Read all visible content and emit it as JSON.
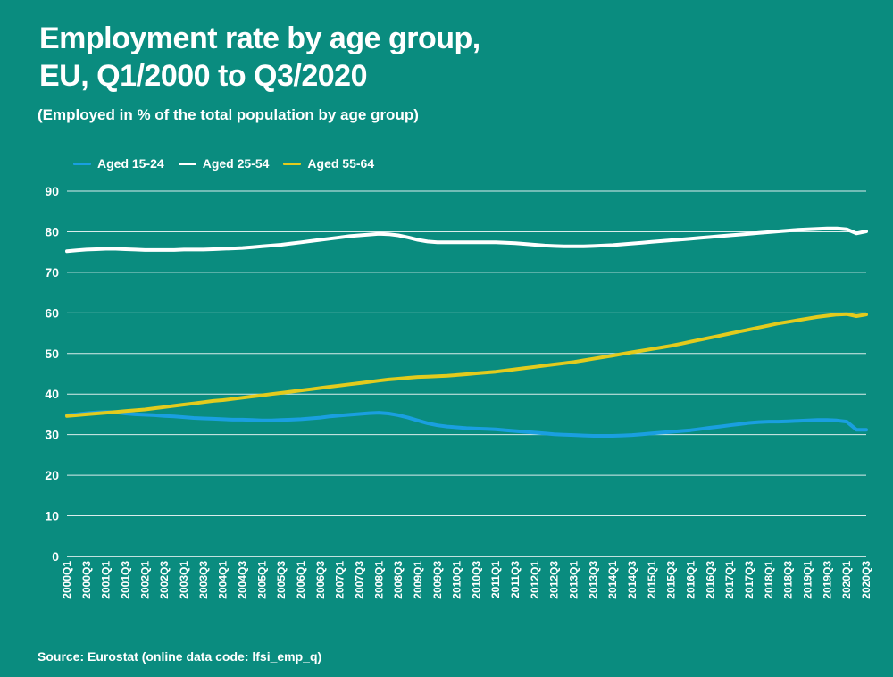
{
  "header": {
    "title_line1": "Employment rate by age group,",
    "title_line2": "EU, Q1/2000 to Q3/2020",
    "subtitle": "(Employed in % of the total population by age group)"
  },
  "footer": {
    "source": "Source: Eurostat (online data code: lfsi_emp_q)"
  },
  "colors": {
    "background": "#0a8c7f",
    "aged_15_24": "#1a9fe0",
    "aged_25_54": "#ffffff",
    "aged_55_64": "#e3cb1d",
    "gridline": "#ffffff"
  },
  "chart_data": {
    "type": "line",
    "title": "Employment rate by age group, EU, Q1/2000 to Q3/2020",
    "subtitle": "(Employed in % of the total population by age group)",
    "xlabel": "",
    "ylabel": "",
    "ylim": [
      0,
      90
    ],
    "yticks": [
      0,
      10,
      20,
      30,
      40,
      50,
      60,
      70,
      80,
      90
    ],
    "grid": true,
    "legend_position": "top-left",
    "x_tick_labels": [
      "2000Q1",
      "2000Q3",
      "2001Q1",
      "2001Q3",
      "2002Q1",
      "2002Q3",
      "2003Q1",
      "2003Q3",
      "2004Q1",
      "2004Q3",
      "2005Q1",
      "2005Q3",
      "2006Q1",
      "2006Q3",
      "2007Q1",
      "2007Q3",
      "2008Q1",
      "2008Q3",
      "2009Q1",
      "2009Q3",
      "2010Q1",
      "2010Q3",
      "2011Q1",
      "2011Q3",
      "2012Q1",
      "2012Q3",
      "2013Q1",
      "2013Q3",
      "2014Q1",
      "2014Q3",
      "2015Q1",
      "2015Q3",
      "2016Q1",
      "2016Q3",
      "2017Q1",
      "2017Q3",
      "2018Q1",
      "2018Q3",
      "2019Q1",
      "2019Q3",
      "2020Q1",
      "2020Q3"
    ],
    "x": [
      "2000Q1",
      "2000Q2",
      "2000Q3",
      "2000Q4",
      "2001Q1",
      "2001Q2",
      "2001Q3",
      "2001Q4",
      "2002Q1",
      "2002Q2",
      "2002Q3",
      "2002Q4",
      "2003Q1",
      "2003Q2",
      "2003Q3",
      "2003Q4",
      "2004Q1",
      "2004Q2",
      "2004Q3",
      "2004Q4",
      "2005Q1",
      "2005Q2",
      "2005Q3",
      "2005Q4",
      "2006Q1",
      "2006Q2",
      "2006Q3",
      "2006Q4",
      "2007Q1",
      "2007Q2",
      "2007Q3",
      "2007Q4",
      "2008Q1",
      "2008Q2",
      "2008Q3",
      "2008Q4",
      "2009Q1",
      "2009Q2",
      "2009Q3",
      "2009Q4",
      "2010Q1",
      "2010Q2",
      "2010Q3",
      "2010Q4",
      "2011Q1",
      "2011Q2",
      "2011Q3",
      "2011Q4",
      "2012Q1",
      "2012Q2",
      "2012Q3",
      "2012Q4",
      "2013Q1",
      "2013Q2",
      "2013Q3",
      "2013Q4",
      "2014Q1",
      "2014Q2",
      "2014Q3",
      "2014Q4",
      "2015Q1",
      "2015Q2",
      "2015Q3",
      "2015Q4",
      "2016Q1",
      "2016Q2",
      "2016Q3",
      "2016Q4",
      "2017Q1",
      "2017Q2",
      "2017Q3",
      "2017Q4",
      "2018Q1",
      "2018Q2",
      "2018Q3",
      "2018Q4",
      "2019Q1",
      "2019Q2",
      "2019Q3",
      "2019Q4",
      "2020Q1",
      "2020Q2",
      "2020Q3"
    ],
    "series": [
      {
        "name": "Aged 15-24",
        "color": "#1a9fe0",
        "values": [
          34.8,
          35.0,
          35.3,
          35.5,
          35.6,
          35.5,
          35.2,
          35.0,
          34.9,
          34.8,
          34.6,
          34.5,
          34.3,
          34.1,
          34.0,
          33.9,
          33.8,
          33.7,
          33.7,
          33.6,
          33.5,
          33.5,
          33.6,
          33.7,
          33.8,
          34.0,
          34.2,
          34.5,
          34.7,
          34.9,
          35.1,
          35.3,
          35.4,
          35.2,
          34.8,
          34.2,
          33.5,
          32.8,
          32.3,
          32.0,
          31.8,
          31.6,
          31.5,
          31.4,
          31.3,
          31.1,
          30.9,
          30.7,
          30.5,
          30.3,
          30.1,
          30.0,
          29.9,
          29.8,
          29.7,
          29.7,
          29.7,
          29.8,
          29.9,
          30.1,
          30.3,
          30.5,
          30.7,
          30.9,
          31.1,
          31.4,
          31.7,
          32.0,
          32.3,
          32.6,
          32.9,
          33.1,
          33.2,
          33.2,
          33.3,
          33.4,
          33.5,
          33.6,
          33.6,
          33.5,
          33.2,
          31.2,
          31.2
        ]
      },
      {
        "name": "Aged 25-54",
        "color": "#ffffff",
        "values": [
          75.2,
          75.4,
          75.6,
          75.7,
          75.8,
          75.8,
          75.7,
          75.6,
          75.5,
          75.5,
          75.5,
          75.5,
          75.6,
          75.6,
          75.6,
          75.7,
          75.8,
          75.9,
          76.0,
          76.2,
          76.4,
          76.6,
          76.8,
          77.1,
          77.4,
          77.7,
          78.0,
          78.3,
          78.6,
          78.9,
          79.1,
          79.3,
          79.5,
          79.4,
          79.1,
          78.6,
          78.0,
          77.6,
          77.4,
          77.4,
          77.4,
          77.4,
          77.4,
          77.4,
          77.4,
          77.3,
          77.2,
          77.0,
          76.8,
          76.6,
          76.5,
          76.4,
          76.4,
          76.4,
          76.5,
          76.6,
          76.7,
          76.9,
          77.1,
          77.3,
          77.5,
          77.7,
          77.9,
          78.1,
          78.3,
          78.5,
          78.7,
          78.9,
          79.1,
          79.3,
          79.5,
          79.7,
          79.9,
          80.1,
          80.3,
          80.5,
          80.6,
          80.7,
          80.8,
          80.8,
          80.6,
          79.6,
          80.1
        ]
      },
      {
        "name": "Aged 55-64",
        "color": "#e3cb1d",
        "values": [
          34.6,
          34.8,
          35.0,
          35.2,
          35.4,
          35.6,
          35.8,
          36.0,
          36.2,
          36.5,
          36.8,
          37.1,
          37.4,
          37.7,
          38.0,
          38.3,
          38.5,
          38.8,
          39.1,
          39.4,
          39.7,
          40.0,
          40.3,
          40.6,
          40.9,
          41.2,
          41.5,
          41.8,
          42.1,
          42.4,
          42.7,
          43.0,
          43.3,
          43.6,
          43.8,
          44.0,
          44.2,
          44.3,
          44.4,
          44.5,
          44.7,
          44.9,
          45.1,
          45.3,
          45.5,
          45.8,
          46.1,
          46.4,
          46.7,
          47.0,
          47.3,
          47.6,
          47.9,
          48.3,
          48.7,
          49.1,
          49.5,
          49.9,
          50.3,
          50.7,
          51.1,
          51.5,
          51.9,
          52.4,
          52.9,
          53.4,
          53.9,
          54.4,
          54.9,
          55.4,
          55.9,
          56.4,
          56.9,
          57.4,
          57.8,
          58.2,
          58.6,
          59.0,
          59.3,
          59.6,
          59.7,
          59.2,
          59.6
        ]
      }
    ]
  }
}
